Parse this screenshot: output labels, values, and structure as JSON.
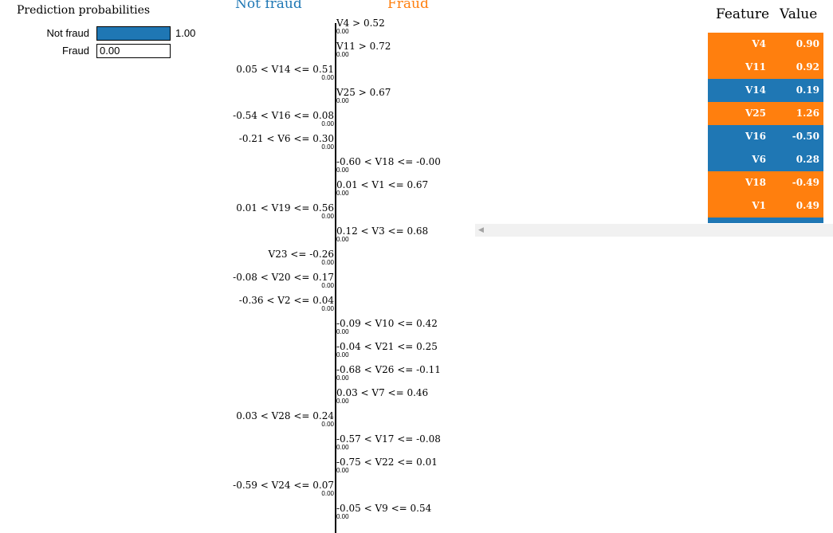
{
  "colors": {
    "not_fraud": "#1f77b4",
    "fraud": "#ff7f0e"
  },
  "prediction": {
    "title": "Prediction probabilities",
    "rows": [
      {
        "label": "Not fraud",
        "value": "1.00",
        "fraction": 1.0,
        "class": "not_fraud"
      },
      {
        "label": "Fraud",
        "value": "0.00",
        "fraction": 0.0,
        "class": "fraud"
      }
    ]
  },
  "explanation": {
    "left_class": "Not fraud",
    "right_class": "Fraud",
    "features": [
      {
        "condition": "V4 > 0.52",
        "weight": "0.00",
        "side": "right"
      },
      {
        "condition": "V11 > 0.72",
        "weight": "0.00",
        "side": "right"
      },
      {
        "condition": "0.05 < V14 <= 0.51",
        "weight": "0.00",
        "side": "left"
      },
      {
        "condition": "V25 > 0.67",
        "weight": "0.00",
        "side": "right"
      },
      {
        "condition": "-0.54 < V16 <= 0.08",
        "weight": "0.00",
        "side": "left"
      },
      {
        "condition": "-0.21 < V6 <= 0.30",
        "weight": "0.00",
        "side": "left"
      },
      {
        "condition": "-0.60 < V18 <= -0.00",
        "weight": "0.00",
        "side": "right"
      },
      {
        "condition": "0.01 < V1 <= 0.67",
        "weight": "0.00",
        "side": "right"
      },
      {
        "condition": "0.01 < V19 <= 0.56",
        "weight": "0.00",
        "side": "left"
      },
      {
        "condition": "0.12 < V3 <= 0.68",
        "weight": "0.00",
        "side": "right"
      },
      {
        "condition": "V23 <= -0.26",
        "weight": "0.00",
        "side": "left"
      },
      {
        "condition": "-0.08 < V20 <= 0.17",
        "weight": "0.00",
        "side": "left"
      },
      {
        "condition": "-0.36 < V2 <= 0.04",
        "weight": "0.00",
        "side": "left"
      },
      {
        "condition": "-0.09 < V10 <= 0.42",
        "weight": "0.00",
        "side": "right"
      },
      {
        "condition": "-0.04 < V21 <= 0.25",
        "weight": "0.00",
        "side": "right"
      },
      {
        "condition": "-0.68 < V26 <= -0.11",
        "weight": "0.00",
        "side": "right"
      },
      {
        "condition": "0.03 < V7 <= 0.46",
        "weight": "0.00",
        "side": "right"
      },
      {
        "condition": "0.03 < V28 <= 0.24",
        "weight": "0.00",
        "side": "left"
      },
      {
        "condition": "-0.57 < V17 <= -0.08",
        "weight": "0.00",
        "side": "right"
      },
      {
        "condition": "-0.75 < V22 <= 0.01",
        "weight": "0.00",
        "side": "right"
      },
      {
        "condition": "-0.59 < V24 <= 0.07",
        "weight": "0.00",
        "side": "left"
      },
      {
        "condition": "-0.05 < V9 <= 0.54",
        "weight": "0.00",
        "side": "right"
      }
    ]
  },
  "table": {
    "header_feature": "Feature",
    "header_value": "Value",
    "rows": [
      {
        "feature": "V4",
        "value": "0.90",
        "class": "fraud"
      },
      {
        "feature": "V11",
        "value": "0.92",
        "class": "fraud"
      },
      {
        "feature": "V14",
        "value": "0.19",
        "class": "not_fraud"
      },
      {
        "feature": "V25",
        "value": "1.26",
        "class": "fraud"
      },
      {
        "feature": "V16",
        "value": "-0.50",
        "class": "not_fraud"
      },
      {
        "feature": "V6",
        "value": "0.28",
        "class": "not_fraud"
      },
      {
        "feature": "V18",
        "value": "-0.49",
        "class": "fraud"
      },
      {
        "feature": "V1",
        "value": "0.49",
        "class": "fraud"
      },
      {
        "feature": "",
        "value": "",
        "class": "not_fraud"
      }
    ]
  },
  "scrollbar": {
    "left_arrow_icon": "scroll-left-arrow-icon"
  }
}
